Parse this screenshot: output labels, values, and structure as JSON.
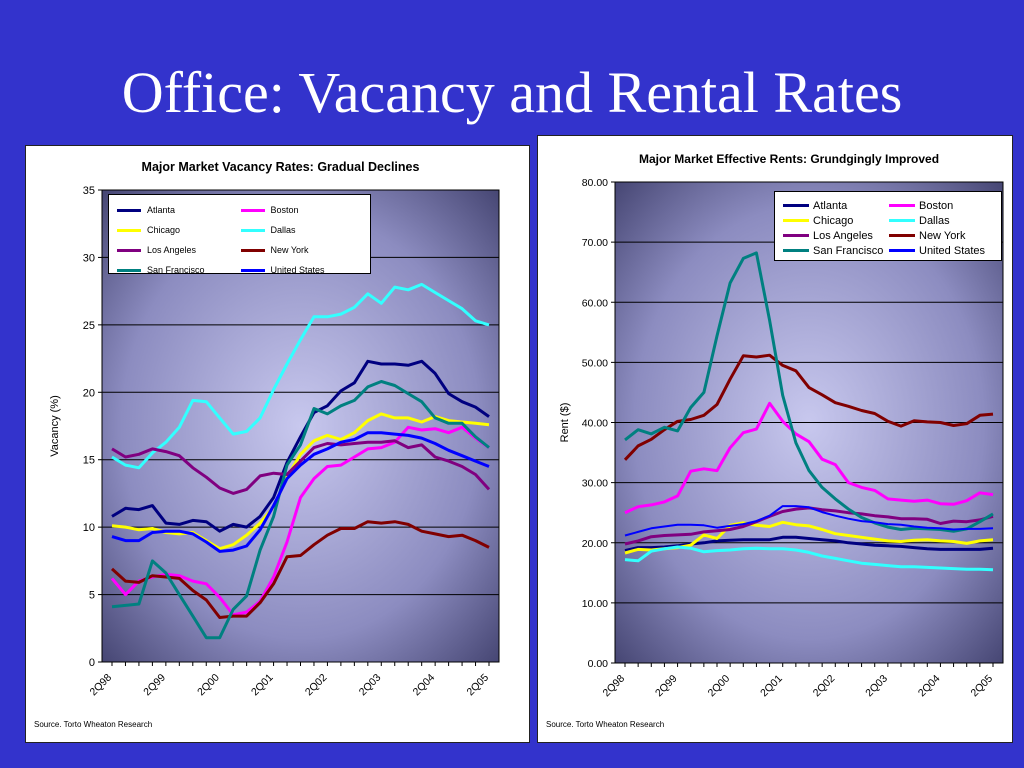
{
  "slide": {
    "title": "Office: Vacancy and Rental Rates"
  },
  "colors": {
    "background": "#3333cc",
    "Atlanta": "#000080",
    "Boston": "#ff00ff",
    "Chicago": "#ffff00",
    "Dallas": "#33ffff",
    "Los Angeles": "#800080",
    "New York": "#800000",
    "San Francisco": "#008080",
    "United States": "#0000ff"
  },
  "chart_data": [
    {
      "type": "line",
      "title": "Major Market Vacancy Rates: Gradual Declines",
      "ylabel": "Vacancy (%)",
      "xlabel": "",
      "ylim": [
        0,
        35
      ],
      "yticks": [
        "0",
        "5",
        "10",
        "15",
        "20",
        "25",
        "30",
        "35"
      ],
      "xtick_labels": [
        "2Q98",
        "2Q99",
        "2Q00",
        "2Q01",
        "2Q02",
        "2Q03",
        "2Q04",
        "2Q05"
      ],
      "x": [
        "2Q98",
        "3Q98",
        "4Q98",
        "1Q99",
        "2Q99",
        "3Q99",
        "4Q99",
        "1Q00",
        "2Q00",
        "3Q00",
        "4Q00",
        "1Q01",
        "2Q01",
        "3Q01",
        "4Q01",
        "1Q02",
        "2Q02",
        "3Q02",
        "4Q02",
        "1Q03",
        "2Q03",
        "3Q03",
        "4Q03",
        "1Q04",
        "2Q04",
        "3Q04",
        "4Q04",
        "1Q05",
        "2Q05"
      ],
      "grid": true,
      "legend_position": "top-left",
      "source": "Source. Torto Wheaton Research",
      "series": [
        {
          "name": "Atlanta",
          "values": [
            10.8,
            11.4,
            11.3,
            11.6,
            10.3,
            10.2,
            10.5,
            10.4,
            9.7,
            10.2,
            10.0,
            10.8,
            12.2,
            14.8,
            16.7,
            18.5,
            19.0,
            20.1,
            20.7,
            22.3,
            22.1,
            22.1,
            22.0,
            22.3,
            21.4,
            19.9,
            19.3,
            18.9,
            18.2
          ]
        },
        {
          "name": "Boston",
          "values": [
            6.2,
            5.0,
            6.0,
            6.3,
            6.5,
            6.4,
            6.0,
            5.8,
            4.8,
            3.5,
            3.7,
            4.5,
            6.3,
            8.9,
            12.2,
            13.6,
            14.5,
            14.6,
            15.2,
            15.8,
            15.9,
            16.3,
            17.4,
            17.2,
            17.3,
            17.0,
            17.4,
            16.6,
            15.9
          ]
        },
        {
          "name": "Chicago",
          "values": [
            10.1,
            10.0,
            9.8,
            9.9,
            9.6,
            9.5,
            9.6,
            9.0,
            8.4,
            8.7,
            9.4,
            10.3,
            11.5,
            13.7,
            15.4,
            16.4,
            16.8,
            16.5,
            17.0,
            17.9,
            18.4,
            18.1,
            18.1,
            17.8,
            18.2,
            17.9,
            17.8,
            17.7,
            17.6
          ]
        },
        {
          "name": "Dallas",
          "values": [
            15.2,
            14.6,
            14.4,
            15.5,
            16.3,
            17.4,
            19.4,
            19.3,
            18.1,
            16.9,
            17.1,
            18.1,
            20.2,
            22.1,
            23.9,
            25.6,
            25.6,
            25.8,
            26.3,
            27.3,
            26.6,
            27.8,
            27.6,
            28.0,
            27.4,
            26.8,
            26.2,
            25.3,
            25.0
          ]
        },
        {
          "name": "Los Angeles",
          "values": [
            15.8,
            15.2,
            15.4,
            15.8,
            15.6,
            15.3,
            14.4,
            13.7,
            12.9,
            12.5,
            12.8,
            13.8,
            14.0,
            13.9,
            14.9,
            15.9,
            16.2,
            16.1,
            16.2,
            16.3,
            16.3,
            16.4,
            15.9,
            16.1,
            15.2,
            14.9,
            14.5,
            13.9,
            12.8
          ]
        },
        {
          "name": "New York",
          "values": [
            6.9,
            6.0,
            5.9,
            6.4,
            6.3,
            6.2,
            5.3,
            4.6,
            3.3,
            3.4,
            3.4,
            4.4,
            5.8,
            7.8,
            7.9,
            8.7,
            9.4,
            9.9,
            9.9,
            10.4,
            10.3,
            10.4,
            10.2,
            9.7,
            9.5,
            9.3,
            9.4,
            9.0,
            8.5
          ]
        },
        {
          "name": "San Francisco",
          "values": [
            4.1,
            4.2,
            4.3,
            7.5,
            6.6,
            5.0,
            3.4,
            1.8,
            1.8,
            3.9,
            4.9,
            8.3,
            10.8,
            14.6,
            16.1,
            18.8,
            18.4,
            19.0,
            19.4,
            20.4,
            20.8,
            20.5,
            19.9,
            19.3,
            18.1,
            17.7,
            17.7,
            16.7,
            15.9
          ]
        },
        {
          "name": "United States",
          "values": [
            9.3,
            9.0,
            9.0,
            9.6,
            9.7,
            9.7,
            9.5,
            8.9,
            8.2,
            8.3,
            8.6,
            9.8,
            11.6,
            13.6,
            14.6,
            15.4,
            15.8,
            16.3,
            16.5,
            17.0,
            17.0,
            16.9,
            16.8,
            16.6,
            16.2,
            15.7,
            15.3,
            14.9,
            14.5
          ]
        }
      ]
    },
    {
      "type": "line",
      "title": "Major Market Effective Rents: Grundgingly Improved",
      "ylabel": "Rent ($)",
      "xlabel": "",
      "ylim": [
        0,
        80
      ],
      "yticks": [
        "0.00",
        "10.00",
        "20.00",
        "30.00",
        "40.00",
        "50.00",
        "60.00",
        "70.00",
        "80.00"
      ],
      "xtick_labels": [
        "2Q98",
        "2Q99",
        "2Q00",
        "2Q01",
        "2Q02",
        "2Q03",
        "2Q04",
        "2Q05"
      ],
      "x": [
        "2Q98",
        "3Q98",
        "4Q98",
        "1Q99",
        "2Q99",
        "3Q99",
        "4Q99",
        "1Q00",
        "2Q00",
        "3Q00",
        "4Q00",
        "1Q01",
        "2Q01",
        "3Q01",
        "4Q01",
        "1Q02",
        "2Q02",
        "3Q02",
        "4Q02",
        "1Q03",
        "2Q03",
        "3Q03",
        "4Q03",
        "1Q04",
        "2Q04",
        "3Q04",
        "4Q04",
        "1Q05",
        "2Q05"
      ],
      "grid": true,
      "legend_position": "top-right",
      "source": "Source. Torto Wheaton Research",
      "series": [
        {
          "name": "Atlanta",
          "values": [
            18.7,
            19.2,
            19.2,
            19.3,
            19.5,
            19.8,
            20.0,
            20.3,
            20.4,
            20.5,
            20.5,
            20.5,
            20.9,
            20.9,
            20.7,
            20.5,
            20.3,
            20.0,
            19.8,
            19.6,
            19.5,
            19.4,
            19.2,
            19.0,
            18.9,
            18.9,
            18.9,
            18.9,
            19.1
          ]
        },
        {
          "name": "Boston",
          "values": [
            25.0,
            26.0,
            26.3,
            26.8,
            27.8,
            31.9,
            32.3,
            32.0,
            35.8,
            38.3,
            38.9,
            43.2,
            40.2,
            38.1,
            36.8,
            33.9,
            33.0,
            30.0,
            29.2,
            28.7,
            27.3,
            27.1,
            26.9,
            27.1,
            26.5,
            26.4,
            27.0,
            28.3,
            28.0
          ]
        },
        {
          "name": "Chicago",
          "values": [
            18.3,
            18.9,
            18.8,
            19.0,
            19.2,
            19.6,
            21.3,
            20.7,
            22.9,
            23.3,
            22.9,
            22.7,
            23.4,
            23.0,
            22.8,
            22.2,
            21.5,
            21.2,
            20.9,
            20.6,
            20.3,
            20.2,
            20.4,
            20.5,
            20.3,
            20.2,
            19.9,
            20.3,
            20.5
          ]
        },
        {
          "name": "Dallas",
          "values": [
            17.2,
            17.0,
            18.6,
            19.0,
            19.3,
            19.1,
            18.5,
            18.7,
            18.8,
            19.0,
            19.1,
            19.0,
            19.0,
            18.8,
            18.4,
            17.8,
            17.4,
            17.0,
            16.6,
            16.4,
            16.2,
            16.0,
            16.0,
            15.9,
            15.8,
            15.7,
            15.6,
            15.6,
            15.5
          ]
        },
        {
          "name": "Los Angeles",
          "values": [
            19.8,
            20.3,
            21.0,
            21.2,
            21.3,
            21.4,
            21.8,
            22.0,
            22.2,
            22.7,
            23.5,
            24.4,
            25.2,
            25.6,
            25.8,
            25.5,
            25.3,
            25.0,
            24.8,
            24.5,
            24.3,
            24.0,
            24.0,
            23.9,
            23.2,
            23.6,
            23.5,
            23.8,
            24.4
          ]
        },
        {
          "name": "New York",
          "values": [
            33.8,
            36.1,
            37.2,
            38.8,
            40.2,
            40.5,
            41.2,
            43.0,
            47.2,
            51.1,
            50.9,
            51.2,
            49.5,
            48.6,
            45.8,
            44.6,
            43.3,
            42.7,
            42.0,
            41.5,
            40.2,
            39.4,
            40.3,
            40.1,
            40.0,
            39.5,
            39.8,
            41.2,
            41.4
          ]
        },
        {
          "name": "San Francisco",
          "values": [
            37.1,
            38.8,
            38.1,
            39.2,
            38.6,
            42.5,
            45.0,
            54.4,
            63.2,
            67.3,
            68.2,
            57.0,
            44.5,
            36.6,
            32.0,
            29.2,
            27.3,
            25.6,
            24.2,
            23.3,
            22.6,
            22.2,
            22.4,
            22.3,
            22.2,
            21.9,
            22.3,
            23.5,
            24.8
          ]
        },
        {
          "name": "United States",
          "values": [
            21.2,
            21.8,
            22.4,
            22.7,
            23.0,
            23.0,
            22.9,
            22.5,
            22.8,
            23.1,
            23.6,
            24.5,
            26.1,
            26.1,
            25.9,
            25.1,
            24.5,
            24.0,
            23.6,
            23.4,
            23.1,
            23.0,
            22.7,
            22.5,
            22.4,
            22.2,
            22.3,
            22.3,
            22.4
          ]
        }
      ]
    }
  ]
}
